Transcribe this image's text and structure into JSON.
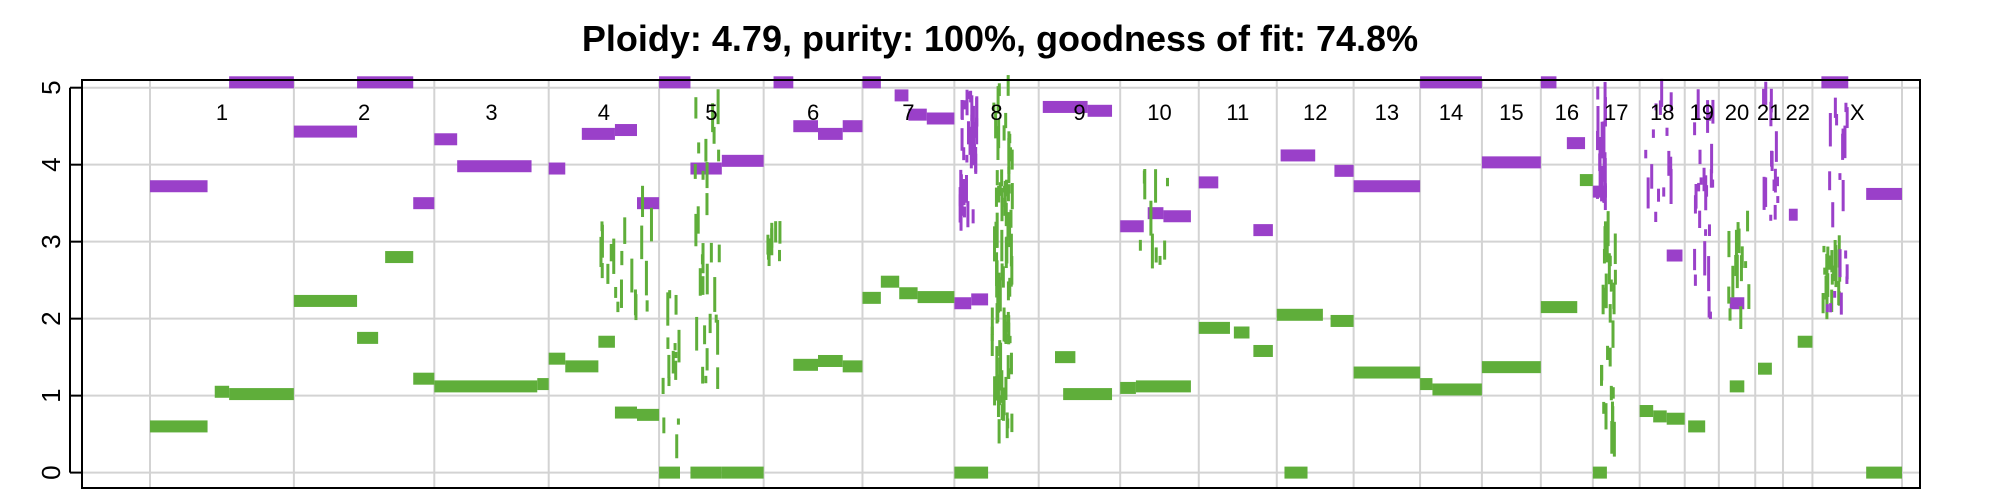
{
  "chart_data": {
    "type": "scatter",
    "title": "Ploidy: 4.79, purity: 100%, goodness of fit: 74.8%",
    "xlabel": "",
    "ylabel": "",
    "ylim": [
      -0.2,
      5.1
    ],
    "yticks": [
      0,
      1,
      2,
      3,
      4,
      5
    ],
    "grid": true,
    "colors": {
      "major": "#9a40c9",
      "minor": "#5fae3a",
      "grid": "#d3d3d3",
      "frame": "#000000"
    },
    "chromosomes": [
      {
        "label": "1",
        "size": 249
      },
      {
        "label": "2",
        "size": 243
      },
      {
        "label": "3",
        "size": 198
      },
      {
        "label": "4",
        "size": 191
      },
      {
        "label": "5",
        "size": 181
      },
      {
        "label": "6",
        "size": 171
      },
      {
        "label": "7",
        "size": 159
      },
      {
        "label": "8",
        "size": 146
      },
      {
        "label": "9",
        "size": 141
      },
      {
        "label": "10",
        "size": 136
      },
      {
        "label": "11",
        "size": 135
      },
      {
        "label": "12",
        "size": 133
      },
      {
        "label": "13",
        "size": 115
      },
      {
        "label": "14",
        "size": 107
      },
      {
        "label": "15",
        "size": 102
      },
      {
        "label": "16",
        "size": 90
      },
      {
        "label": "17",
        "size": 81
      },
      {
        "label": "18",
        "size": 78
      },
      {
        "label": "19",
        "size": 59
      },
      {
        "label": "20",
        "size": 63
      },
      {
        "label": "21",
        "size": 48
      },
      {
        "label": "22",
        "size": 51
      },
      {
        "label": "X",
        "size": 155
      }
    ],
    "series": [
      {
        "color": "#9a40c9",
        "segments": [
          {
            "chr": 0,
            "start": 0.0,
            "end": 0.4,
            "value": 3.72
          },
          {
            "chr": 0,
            "start": 0.55,
            "end": 1.0,
            "value": 5.07
          },
          {
            "chr": 1,
            "start": 0.0,
            "end": 0.45,
            "value": 4.43
          },
          {
            "chr": 1,
            "start": 0.45,
            "end": 0.85,
            "value": 5.07
          },
          {
            "chr": 1,
            "start": 0.85,
            "end": 1.0,
            "value": 3.5
          },
          {
            "chr": 2,
            "start": 0.0,
            "end": 0.2,
            "value": 4.33
          },
          {
            "chr": 2,
            "start": 0.2,
            "end": 0.85,
            "value": 3.98
          },
          {
            "chr": 3,
            "start": 0.0,
            "end": 0.15,
            "value": 3.95
          },
          {
            "chr": 3,
            "start": 0.3,
            "end": 0.6,
            "value": 4.4
          },
          {
            "chr": 3,
            "start": 0.6,
            "end": 0.8,
            "value": 4.45
          },
          {
            "chr": 3,
            "start": 0.8,
            "end": 1.0,
            "value": 3.5
          },
          {
            "chr": 4,
            "start": 0.0,
            "end": 0.3,
            "value": 5.07
          },
          {
            "chr": 4,
            "start": 0.3,
            "end": 0.6,
            "value": 3.95
          },
          {
            "chr": 4,
            "start": 0.6,
            "end": 1.0,
            "value": 4.05
          },
          {
            "chr": 5,
            "start": 0.1,
            "end": 0.3,
            "value": 5.07
          },
          {
            "chr": 5,
            "start": 0.3,
            "end": 0.55,
            "value": 4.5
          },
          {
            "chr": 5,
            "start": 0.55,
            "end": 0.8,
            "value": 4.4
          },
          {
            "chr": 5,
            "start": 0.8,
            "end": 1.0,
            "value": 4.5
          },
          {
            "chr": 6,
            "start": 0.0,
            "end": 0.2,
            "value": 5.07
          },
          {
            "chr": 6,
            "start": 0.35,
            "end": 0.5,
            "value": 4.9
          },
          {
            "chr": 6,
            "start": 0.5,
            "end": 0.7,
            "value": 4.65
          },
          {
            "chr": 6,
            "start": 0.7,
            "end": 1.0,
            "value": 4.6
          },
          {
            "chr": 7,
            "start": 0.0,
            "end": 0.2,
            "value": 2.2
          },
          {
            "chr": 7,
            "start": 0.2,
            "end": 0.4,
            "value": 2.25
          },
          {
            "chr": 8,
            "start": 0.05,
            "end": 0.6,
            "value": 4.75
          },
          {
            "chr": 8,
            "start": 0.6,
            "end": 0.9,
            "value": 4.7
          },
          {
            "chr": 9,
            "start": 0.0,
            "end": 0.3,
            "value": 3.2
          },
          {
            "chr": 9,
            "start": 0.35,
            "end": 0.55,
            "value": 3.37
          },
          {
            "chr": 9,
            "start": 0.55,
            "end": 0.9,
            "value": 3.33
          },
          {
            "chr": 10,
            "start": 0.0,
            "end": 0.25,
            "value": 3.77
          },
          {
            "chr": 10,
            "start": 0.7,
            "end": 0.95,
            "value": 3.15
          },
          {
            "chr": 11,
            "start": 0.05,
            "end": 0.5,
            "value": 4.12
          },
          {
            "chr": 11,
            "start": 0.75,
            "end": 1.0,
            "value": 3.92
          },
          {
            "chr": 12,
            "start": 0.0,
            "end": 1.0,
            "value": 3.72
          },
          {
            "chr": 13,
            "start": 0.0,
            "end": 1.0,
            "value": 5.07
          },
          {
            "chr": 14,
            "start": 0.0,
            "end": 1.0,
            "value": 4.03
          },
          {
            "chr": 15,
            "start": 0.5,
            "end": 0.85,
            "value": 4.28
          },
          {
            "chr": 15,
            "start": 0.0,
            "end": 0.3,
            "value": 5.07
          },
          {
            "chr": 16,
            "start": 0.0,
            "end": 0.3,
            "value": 3.65
          },
          {
            "chr": 17,
            "start": 0.6,
            "end": 0.95,
            "value": 2.82
          },
          {
            "chr": 19,
            "start": 0.3,
            "end": 0.7,
            "value": 2.2
          },
          {
            "chr": 21,
            "start": 0.2,
            "end": 0.5,
            "value": 3.35
          },
          {
            "chr": 22,
            "start": 0.6,
            "end": 1.0,
            "value": 3.62
          },
          {
            "chr": 22,
            "start": 0.1,
            "end": 0.4,
            "value": 5.07
          }
        ]
      },
      {
        "color": "#5fae3a",
        "segments": [
          {
            "chr": 0,
            "start": 0.0,
            "end": 0.4,
            "value": 0.6
          },
          {
            "chr": 0,
            "start": 0.45,
            "end": 0.55,
            "value": 1.05
          },
          {
            "chr": 0,
            "start": 0.55,
            "end": 1.0,
            "value": 1.02
          },
          {
            "chr": 1,
            "start": 0.0,
            "end": 0.45,
            "value": 2.23
          },
          {
            "chr": 1,
            "start": 0.45,
            "end": 0.6,
            "value": 1.75
          },
          {
            "chr": 1,
            "start": 0.65,
            "end": 0.85,
            "value": 2.8
          },
          {
            "chr": 1,
            "start": 0.85,
            "end": 1.0,
            "value": 1.22
          },
          {
            "chr": 2,
            "start": 0.0,
            "end": 0.9,
            "value": 1.12
          },
          {
            "chr": 2,
            "start": 0.9,
            "end": 1.0,
            "value": 1.15
          },
          {
            "chr": 3,
            "start": 0.0,
            "end": 0.15,
            "value": 1.48
          },
          {
            "chr": 3,
            "start": 0.15,
            "end": 0.45,
            "value": 1.38
          },
          {
            "chr": 3,
            "start": 0.45,
            "end": 0.6,
            "value": 1.7
          },
          {
            "chr": 3,
            "start": 0.6,
            "end": 0.8,
            "value": 0.78
          },
          {
            "chr": 3,
            "start": 0.8,
            "end": 1.0,
            "value": 0.75
          },
          {
            "chr": 4,
            "start": 0.0,
            "end": 0.2,
            "value": 0.0
          },
          {
            "chr": 4,
            "start": 0.3,
            "end": 0.6,
            "value": 0.0
          },
          {
            "chr": 4,
            "start": 0.6,
            "end": 1.0,
            "value": 0.0
          },
          {
            "chr": 5,
            "start": 0.3,
            "end": 0.55,
            "value": 1.4
          },
          {
            "chr": 5,
            "start": 0.55,
            "end": 0.8,
            "value": 1.45
          },
          {
            "chr": 5,
            "start": 0.8,
            "end": 1.0,
            "value": 1.38
          },
          {
            "chr": 6,
            "start": 0.0,
            "end": 0.2,
            "value": 2.27
          },
          {
            "chr": 6,
            "start": 0.2,
            "end": 0.4,
            "value": 2.48
          },
          {
            "chr": 6,
            "start": 0.4,
            "end": 0.6,
            "value": 2.33
          },
          {
            "chr": 6,
            "start": 0.6,
            "end": 1.0,
            "value": 2.28
          },
          {
            "chr": 7,
            "start": 0.0,
            "end": 0.4,
            "value": 0.0
          },
          {
            "chr": 8,
            "start": 0.2,
            "end": 0.45,
            "value": 1.5
          },
          {
            "chr": 8,
            "start": 0.3,
            "end": 0.9,
            "value": 1.02
          },
          {
            "chr": 9,
            "start": 0.0,
            "end": 0.2,
            "value": 1.1
          },
          {
            "chr": 9,
            "start": 0.2,
            "end": 0.9,
            "value": 1.12
          },
          {
            "chr": 10,
            "start": 0.0,
            "end": 0.4,
            "value": 1.88
          },
          {
            "chr": 10,
            "start": 0.45,
            "end": 0.65,
            "value": 1.82
          },
          {
            "chr": 10,
            "start": 0.7,
            "end": 0.95,
            "value": 1.58
          },
          {
            "chr": 11,
            "start": 0.0,
            "end": 0.6,
            "value": 2.05
          },
          {
            "chr": 11,
            "start": 0.7,
            "end": 1.0,
            "value": 1.97
          },
          {
            "chr": 11,
            "start": 0.1,
            "end": 0.4,
            "value": 0.0
          },
          {
            "chr": 12,
            "start": 0.0,
            "end": 1.0,
            "value": 1.3
          },
          {
            "chr": 13,
            "start": 0.0,
            "end": 0.2,
            "value": 1.15
          },
          {
            "chr": 13,
            "start": 0.2,
            "end": 1.0,
            "value": 1.08
          },
          {
            "chr": 14,
            "start": 0.0,
            "end": 1.0,
            "value": 1.37
          },
          {
            "chr": 15,
            "start": 0.0,
            "end": 0.7,
            "value": 2.15
          },
          {
            "chr": 15,
            "start": 0.75,
            "end": 1.0,
            "value": 3.8
          },
          {
            "chr": 16,
            "start": 0.0,
            "end": 0.3,
            "value": 0.0
          },
          {
            "chr": 17,
            "start": 0.0,
            "end": 0.3,
            "value": 0.8
          },
          {
            "chr": 17,
            "start": 0.3,
            "end": 0.6,
            "value": 0.73
          },
          {
            "chr": 17,
            "start": 0.6,
            "end": 1.0,
            "value": 0.7
          },
          {
            "chr": 18,
            "start": 0.1,
            "end": 0.6,
            "value": 0.6
          },
          {
            "chr": 19,
            "start": 0.3,
            "end": 0.7,
            "value": 1.12
          },
          {
            "chr": 20,
            "start": 0.1,
            "end": 0.6,
            "value": 1.35
          },
          {
            "chr": 21,
            "start": 0.5,
            "end": 1.0,
            "value": 1.7
          },
          {
            "chr": 22,
            "start": 0.6,
            "end": 1.0,
            "value": 0.0
          }
        ]
      }
    ],
    "scatter_clusters": [
      {
        "chr": 7,
        "center": 0.55,
        "spread": 0.12,
        "y_min": 0.5,
        "y_max": 5.05,
        "color": "#5fae3a",
        "count": 90
      },
      {
        "chr": 7,
        "center": 0.15,
        "spread": 0.1,
        "y_min": 3.3,
        "y_max": 5.05,
        "color": "#9a40c9",
        "count": 40
      },
      {
        "chr": 4,
        "center": 0.45,
        "spread": 0.12,
        "y_min": 0.9,
        "y_max": 4.9,
        "color": "#5fae3a",
        "count": 30
      },
      {
        "chr": 4,
        "center": 0.1,
        "spread": 0.08,
        "y_min": 0.3,
        "y_max": 2.6,
        "color": "#5fae3a",
        "count": 15
      },
      {
        "chr": 16,
        "center": 0.3,
        "spread": 0.15,
        "y_min": 0.4,
        "y_max": 3.2,
        "color": "#5fae3a",
        "count": 30
      },
      {
        "chr": 16,
        "center": 0.15,
        "spread": 0.1,
        "y_min": 3.5,
        "y_max": 5.05,
        "color": "#9a40c9",
        "count": 20
      },
      {
        "chr": 22,
        "center": 0.2,
        "spread": 0.1,
        "y_min": 2.2,
        "y_max": 3.0,
        "color": "#5fae3a",
        "count": 25
      },
      {
        "chr": 22,
        "center": 0.3,
        "spread": 0.15,
        "y_min": 2.1,
        "y_max": 5.05,
        "color": "#9a40c9",
        "count": 20
      },
      {
        "chr": 3,
        "center": 0.7,
        "spread": 0.25,
        "y_min": 1.8,
        "y_max": 3.6,
        "color": "#5fae3a",
        "count": 20
      },
      {
        "chr": 18,
        "center": 0.5,
        "spread": 0.3,
        "y_min": 2.0,
        "y_max": 4.8,
        "color": "#9a40c9",
        "count": 25
      },
      {
        "chr": 19,
        "center": 0.5,
        "spread": 0.3,
        "y_min": 2.0,
        "y_max": 3.5,
        "color": "#5fae3a",
        "count": 15
      },
      {
        "chr": 20,
        "center": 0.5,
        "spread": 0.3,
        "y_min": 2.8,
        "y_max": 5.05,
        "color": "#9a40c9",
        "count": 15
      },
      {
        "chr": 17,
        "center": 0.4,
        "spread": 0.3,
        "y_min": 3.2,
        "y_max": 5.0,
        "color": "#9a40c9",
        "count": 15
      },
      {
        "chr": 5,
        "center": 0.1,
        "spread": 0.08,
        "y_min": 2.6,
        "y_max": 3.2,
        "color": "#5fae3a",
        "count": 8
      },
      {
        "chr": 9,
        "center": 0.4,
        "spread": 0.25,
        "y_min": 2.2,
        "y_max": 3.9,
        "color": "#5fae3a",
        "count": 10
      }
    ]
  }
}
